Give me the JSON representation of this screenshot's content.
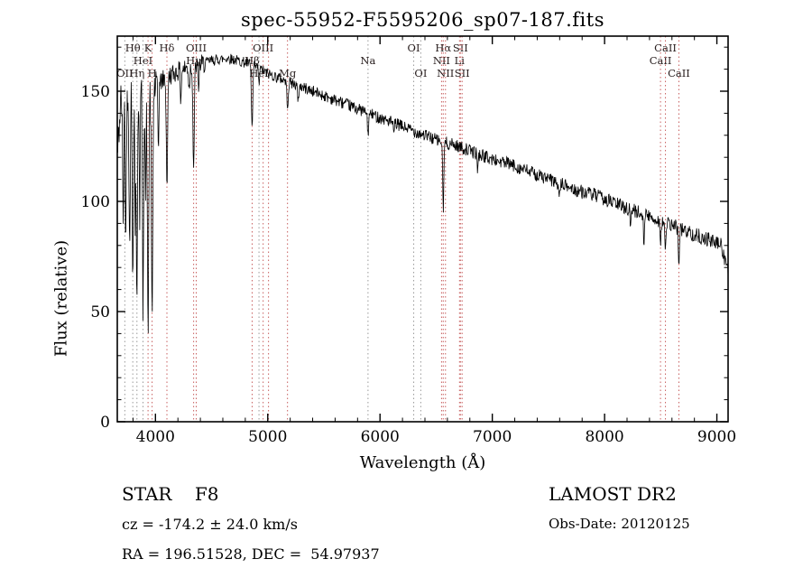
{
  "chart_data": {
    "type": "line",
    "title": "spec-55952-F5595206_sp07-187.fits",
    "xlabel": "Wavelength (Å)",
    "ylabel": "Flux (relative)",
    "xlim": [
      3660,
      9100
    ],
    "ylim": [
      0,
      175
    ],
    "xticks": [
      4000,
      5000,
      6000,
      7000,
      8000,
      9000
    ],
    "yticks": [
      0,
      50,
      100,
      150
    ],
    "x_minor_step": 200,
    "y_minor_step": 10,
    "line_color": "#000000",
    "marker_colors": {
      "red": "#c86060",
      "gray": "#9a9a9a"
    },
    "label_color": "#2a2020",
    "continuum": [
      [
        3660,
        120
      ],
      [
        3690,
        145
      ],
      [
        3720,
        150
      ],
      [
        3760,
        151
      ],
      [
        3800,
        150
      ],
      [
        3840,
        151
      ],
      [
        3880,
        150
      ],
      [
        3920,
        151
      ],
      [
        3960,
        150
      ],
      [
        4000,
        152
      ],
      [
        4060,
        155
      ],
      [
        4120,
        157
      ],
      [
        4200,
        159
      ],
      [
        4300,
        161
      ],
      [
        4400,
        162
      ],
      [
        4500,
        164
      ],
      [
        4650,
        165
      ],
      [
        4800,
        163
      ],
      [
        4900,
        161
      ],
      [
        5000,
        158
      ],
      [
        5100,
        156
      ],
      [
        5200,
        154
      ],
      [
        5350,
        151
      ],
      [
        5500,
        148
      ],
      [
        5650,
        145
      ],
      [
        5800,
        142
      ],
      [
        5950,
        139
      ],
      [
        6100,
        136
      ],
      [
        6250,
        133
      ],
      [
        6400,
        130
      ],
      [
        6550,
        127
      ],
      [
        6700,
        125
      ],
      [
        6850,
        122
      ],
      [
        7000,
        119
      ],
      [
        7150,
        117
      ],
      [
        7300,
        114
      ],
      [
        7450,
        111
      ],
      [
        7600,
        108
      ],
      [
        7750,
        105
      ],
      [
        7900,
        103
      ],
      [
        8050,
        100
      ],
      [
        8200,
        97
      ],
      [
        8350,
        94
      ],
      [
        8500,
        91
      ],
      [
        8650,
        88
      ],
      [
        8800,
        85
      ],
      [
        8950,
        82
      ],
      [
        9040,
        80
      ],
      [
        9100,
        68
      ]
    ],
    "absorption_features": [
      [
        3712,
        55,
        5
      ],
      [
        3735,
        65,
        5
      ],
      [
        3770,
        75,
        5
      ],
      [
        3798,
        85,
        5
      ],
      [
        3820,
        60,
        4
      ],
      [
        3835,
        100,
        5
      ],
      [
        3860,
        55,
        4
      ],
      [
        3889,
        105,
        5
      ],
      [
        3912,
        50,
        4
      ],
      [
        3934,
        112,
        6
      ],
      [
        3970,
        105,
        6
      ],
      [
        4026,
        30,
        4
      ],
      [
        4102,
        48,
        6
      ],
      [
        4226,
        14,
        4
      ],
      [
        4300,
        10,
        5
      ],
      [
        4340,
        46,
        6
      ],
      [
        4383,
        12,
        4
      ],
      [
        4861,
        29,
        6
      ],
      [
        4922,
        8,
        4
      ],
      [
        5176,
        10,
        7
      ],
      [
        5270,
        8,
        5
      ],
      [
        5893,
        9,
        6
      ],
      [
        6122,
        6,
        4
      ],
      [
        6563,
        31,
        5
      ],
      [
        6870,
        7,
        5
      ],
      [
        7594,
        7,
        5
      ],
      [
        8230,
        8,
        4
      ],
      [
        8350,
        12,
        4
      ],
      [
        8498,
        9,
        5
      ],
      [
        8542,
        13,
        5
      ],
      [
        8662,
        14,
        5
      ]
    ],
    "noise": {
      "seed": 42,
      "step": 4,
      "blue_amp": 10,
      "mid_amp": 4.5,
      "base_amp": 2.4,
      "red_extra": 1.1
    },
    "line_markers": [
      {
        "wavelength": 3727,
        "label": "OII",
        "row": 2,
        "color": "gray"
      },
      {
        "wavelength": 3798,
        "label": "Hθ",
        "row": 0,
        "color": "gray"
      },
      {
        "wavelength": 3835,
        "label": "Hη",
        "row": 2,
        "color": "gray"
      },
      {
        "wavelength": 3889,
        "label": "HeI",
        "row": 1,
        "color": "gray"
      },
      {
        "wavelength": 3934,
        "label": "K",
        "row": 0,
        "color": "red"
      },
      {
        "wavelength": 3970,
        "label": "H",
        "row": 2,
        "color": "red"
      },
      {
        "wavelength": 4102,
        "label": "Hδ",
        "row": 0,
        "color": "red"
      },
      {
        "wavelength": 4340,
        "label": "Hγ",
        "row": 1,
        "color": "red"
      },
      {
        "wavelength": 4363,
        "label": "OIII",
        "row": 0,
        "color": "red"
      },
      {
        "wavelength": 4861,
        "label": "Hβ",
        "row": 1,
        "color": "red"
      },
      {
        "wavelength": 4922,
        "label": "HeI",
        "row": 2,
        "color": "gray"
      },
      {
        "wavelength": 4959,
        "label": "OIII",
        "row": 0,
        "color": "red"
      },
      {
        "wavelength": 5007,
        "label": "",
        "row": 0,
        "color": "red"
      },
      {
        "wavelength": 5176,
        "label": "Mg",
        "row": 2,
        "color": "red"
      },
      {
        "wavelength": 5893,
        "label": "Na",
        "row": 1,
        "color": "gray"
      },
      {
        "wavelength": 6300,
        "label": "OI",
        "row": 0,
        "color": "gray"
      },
      {
        "wavelength": 6363,
        "label": "OI",
        "row": 2,
        "color": "gray"
      },
      {
        "wavelength": 6548,
        "label": "NII",
        "row": 1,
        "color": "red"
      },
      {
        "wavelength": 6563,
        "label": "Hα",
        "row": 0,
        "color": "red"
      },
      {
        "wavelength": 6583,
        "label": "NII",
        "row": 2,
        "color": "red"
      },
      {
        "wavelength": 6708,
        "label": "Li",
        "row": 1,
        "color": "red"
      },
      {
        "wavelength": 6716,
        "label": "SII",
        "row": 0,
        "color": "red"
      },
      {
        "wavelength": 6731,
        "label": "SII",
        "row": 2,
        "color": "red"
      },
      {
        "wavelength": 8498,
        "label": "CaII",
        "row": 1,
        "color": "red"
      },
      {
        "wavelength": 8542,
        "label": "CaII",
        "row": 0,
        "color": "red"
      },
      {
        "wavelength": 8662,
        "label": "CaII",
        "row": 2,
        "color": "red"
      }
    ]
  },
  "footer": {
    "class_label": "STAR    F8",
    "cz": "cz = -174.2 ± 24.0 km/s",
    "radec": "RA = 196.51528, DEC =  54.97937",
    "survey": "LAMOST DR2",
    "obs_date": "Obs-Date: 20120125"
  }
}
